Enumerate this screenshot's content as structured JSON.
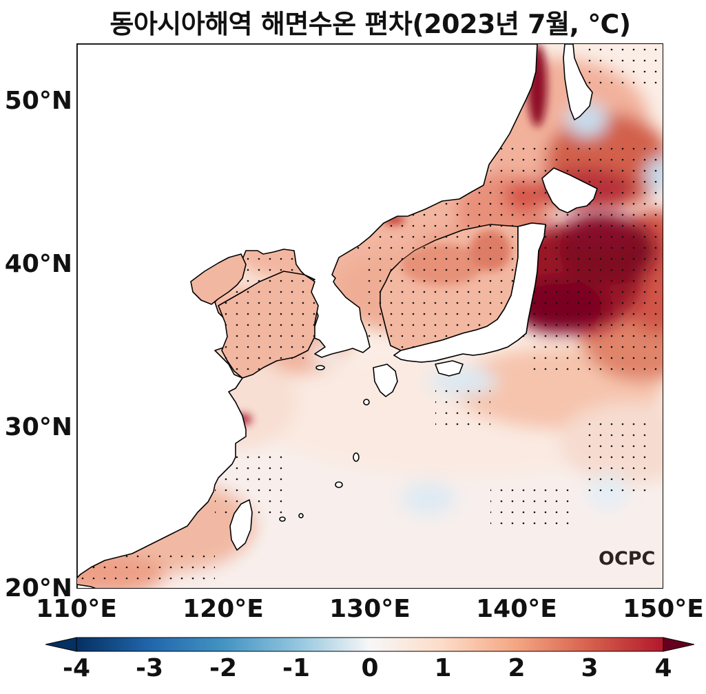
{
  "title": "동아시아해역 해면수온 편차(2023년 7월, ℃)",
  "map": {
    "lon_range": [
      110,
      150
    ],
    "lat_range": [
      20,
      53.5
    ],
    "projection": "PlateCarree",
    "stippling": "dot pattern marking significant anomalies",
    "y_ticks": [
      "20°N",
      "30°N",
      "40°N",
      "50°N"
    ],
    "x_ticks": [
      "110°E",
      "120°E",
      "130°E",
      "140°E",
      "150°E"
    ]
  },
  "colorbar": {
    "colormap": "RdBu_r",
    "range": [
      -4,
      4
    ],
    "extend": "both",
    "orientation": "horizontal",
    "labels": [
      "-4",
      "-3",
      "-2",
      "-1",
      "0",
      "1",
      "2",
      "3",
      "4"
    ],
    "colors": [
      "#053061",
      "#2166ac",
      "#4393c3",
      "#92c5de",
      "#f7f7f7",
      "#fddbc7",
      "#f4a582",
      "#d6604d",
      "#b2182b",
      "#67001f"
    ]
  },
  "watermark": "OCPC",
  "land_color": "#ffffff",
  "coast_color": "#000000"
}
